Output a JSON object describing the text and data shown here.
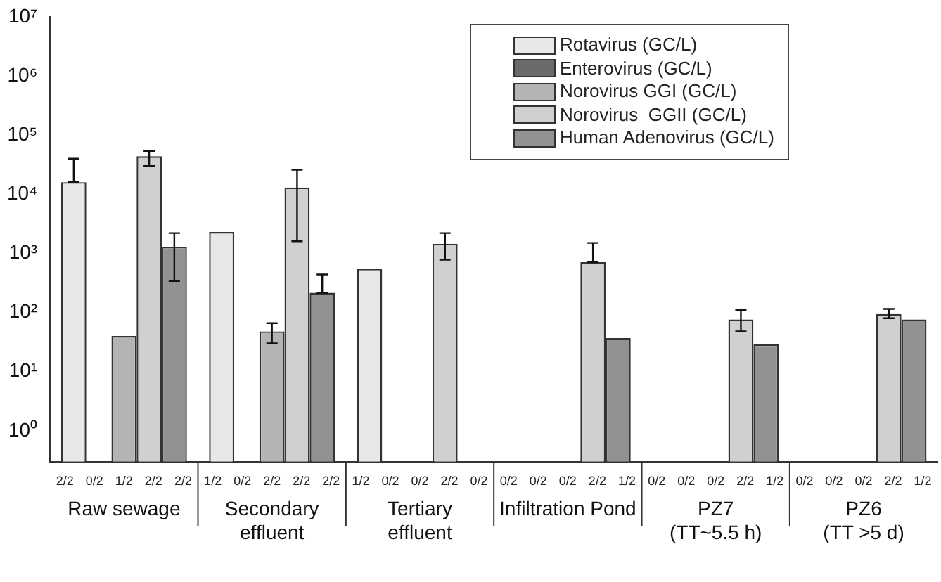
{
  "chart_data": {
    "type": "bar",
    "log": "y",
    "grid": false,
    "legend": "top right",
    "categories": [
      "Raw sewage",
      "Secondary\neffluent",
      "Tertiary\neffluent",
      "Infiltration Pond",
      "PZ7\n(TT~5.5 h)",
      "PZ6\n(TT >5 d)"
    ],
    "ylim": [
      0.3,
      10000000
    ],
    "yticks": [
      {
        "value": 1,
        "label": "10⁰"
      },
      {
        "value": 10,
        "label": "10¹"
      },
      {
        "value": 100,
        "label": "10²"
      },
      {
        "value": 1000,
        "label": "10³"
      },
      {
        "value": 10000,
        "label": "10⁴"
      },
      {
        "value": 100000,
        "label": "10⁵"
      },
      {
        "value": 1000000,
        "label": "10⁶"
      },
      {
        "value": 10000000,
        "label": "10⁷"
      }
    ],
    "annotations": [
      "2/2 0/2 1/2 2/2 2/2",
      "1/2 0/2 2/2 2/2 2/2",
      "1/2 0/2 0/2 2/2 0/2",
      "0/2 0/2 0/2 2/2 1/2",
      "0/2 0/2 0/2 2/2 1/2",
      "0/2 0/2 0/2 2/2 1/2"
    ],
    "series": [
      {
        "name": "Rotavirus (GC/L)",
        "color": "#e8e8e8",
        "values": [
          16000,
          2300,
          550,
          null,
          null,
          null
        ],
        "errors": [
          [
            16000,
            40000
          ],
          null,
          null,
          null,
          null,
          null
        ]
      },
      {
        "name": "Enterovirus (GC/L)",
        "color": "#6a6a6a",
        "values": [
          null,
          null,
          null,
          null,
          null,
          null
        ]
      },
      {
        "name": "Norovirus GGI (GC/L)",
        "color": "#b4b4b4",
        "values": [
          40,
          48,
          null,
          null,
          null,
          null
        ],
        "errors": [
          null,
          [
            30,
            66
          ],
          null,
          null,
          null,
          null
        ]
      },
      {
        "name": "Norovirus  GGII (GC/L)",
        "color": "#d0d0d0",
        "values": [
          44000,
          13000,
          1450,
          710,
          76,
          94
        ],
        "errors": [
          [
            30000,
            54000
          ],
          [
            1600,
            26000
          ],
          [
            780,
            2200
          ],
          [
            710,
            1500
          ],
          [
            48,
            110
          ],
          [
            80,
            115
          ]
        ]
      },
      {
        "name": "Human Adenovirus (GC/L)",
        "color": "#929292",
        "values": [
          1300,
          215,
          null,
          37,
          29,
          76
        ],
        "errors": [
          [
            340,
            2200
          ],
          [
            215,
            440
          ],
          null,
          null,
          null,
          null
        ]
      }
    ]
  }
}
